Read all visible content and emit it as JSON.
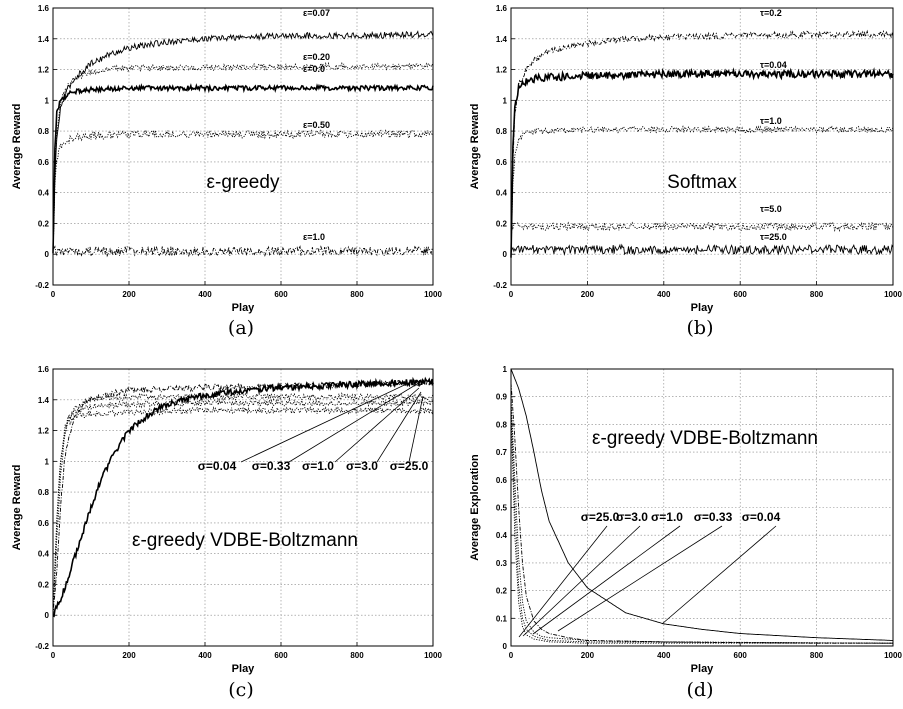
{
  "chart_data": [
    {
      "panel": "a",
      "caption": "(a)",
      "type": "line",
      "title": "",
      "overlay_text": "ε-greedy",
      "xlabel": "Play",
      "ylabel": "Average Reward",
      "xlim": [
        0,
        1000
      ],
      "ylim": [
        -0.2,
        1.6
      ],
      "xticks": [
        "0",
        "200",
        "400",
        "600",
        "800",
        "1000"
      ],
      "yticks": [
        "-0.2",
        "0",
        "0.2",
        "0.4",
        "0.6",
        "0.8",
        "1",
        "1.2",
        "1.4",
        "1.6"
      ],
      "grid": true,
      "series": [
        {
          "name": "ε=0.07",
          "style": "solid-thin",
          "x": [
            0,
            5,
            10,
            20,
            40,
            60,
            100,
            150,
            200,
            300,
            400,
            500,
            600,
            800,
            1000
          ],
          "y": [
            0.0,
            0.5,
            0.75,
            0.95,
            1.08,
            1.15,
            1.24,
            1.3,
            1.34,
            1.38,
            1.4,
            1.41,
            1.42,
            1.42,
            1.43
          ],
          "noise": 0.02
        },
        {
          "name": "ε=0.20",
          "style": "dotted",
          "x": [
            0,
            5,
            10,
            20,
            40,
            60,
            100,
            150,
            200,
            400,
            600,
            800,
            1000
          ],
          "y": [
            0.0,
            0.55,
            0.8,
            1.0,
            1.1,
            1.15,
            1.18,
            1.2,
            1.21,
            1.21,
            1.22,
            1.22,
            1.22
          ],
          "noise": 0.02
        },
        {
          "name": "ε=0.0",
          "style": "solid-thick",
          "x": [
            0,
            5,
            10,
            20,
            40,
            60,
            100,
            200,
            400,
            600,
            800,
            1000
          ],
          "y": [
            0.0,
            0.7,
            0.92,
            1.0,
            1.04,
            1.06,
            1.07,
            1.08,
            1.08,
            1.08,
            1.08,
            1.08
          ],
          "noise": 0.015
        },
        {
          "name": "ε=0.50",
          "style": "dotted",
          "x": [
            0,
            5,
            10,
            20,
            40,
            60,
            100,
            200,
            400,
            600,
            800,
            1000
          ],
          "y": [
            0.0,
            0.45,
            0.62,
            0.7,
            0.74,
            0.76,
            0.77,
            0.78,
            0.78,
            0.78,
            0.78,
            0.78
          ],
          "noise": 0.025
        },
        {
          "name": "ε=1.0",
          "style": "dash-dot",
          "x": [
            0,
            1000
          ],
          "y": [
            0.02,
            0.02
          ],
          "noise": 0.03
        }
      ]
    },
    {
      "panel": "b",
      "caption": "(b)",
      "type": "line",
      "title": "",
      "overlay_text": "Softmax",
      "xlabel": "Play",
      "ylabel": "Average Reward",
      "xlim": [
        0,
        1000
      ],
      "ylim": [
        -0.2,
        1.6
      ],
      "xticks": [
        "0",
        "200",
        "400",
        "600",
        "800",
        "1000"
      ],
      "yticks": [
        "-0.2",
        "0",
        "0.2",
        "0.4",
        "0.6",
        "0.8",
        "1",
        "1.2",
        "1.4",
        "1.6"
      ],
      "grid": true,
      "series": [
        {
          "name": "τ=0.2",
          "style": "dash-dot",
          "x": [
            0,
            5,
            10,
            20,
            40,
            60,
            100,
            150,
            200,
            300,
            400,
            600,
            800,
            1000
          ],
          "y": [
            0.0,
            0.6,
            0.9,
            1.1,
            1.2,
            1.26,
            1.32,
            1.35,
            1.37,
            1.4,
            1.41,
            1.42,
            1.43,
            1.43
          ],
          "noise": 0.02
        },
        {
          "name": "τ=0.04",
          "style": "solid-thick",
          "x": [
            0,
            5,
            10,
            20,
            40,
            60,
            100,
            200,
            400,
            600,
            800,
            1000
          ],
          "y": [
            0.0,
            0.7,
            0.95,
            1.08,
            1.12,
            1.14,
            1.15,
            1.16,
            1.17,
            1.17,
            1.17,
            1.17
          ],
          "noise": 0.025
        },
        {
          "name": "τ=1.0",
          "style": "dotted",
          "x": [
            0,
            5,
            10,
            20,
            40,
            60,
            100,
            200,
            400,
            600,
            800,
            1000
          ],
          "y": [
            0.0,
            0.45,
            0.65,
            0.76,
            0.79,
            0.8,
            0.8,
            0.81,
            0.81,
            0.81,
            0.81,
            0.81
          ],
          "noise": 0.02
        },
        {
          "name": "τ=5.0",
          "style": "dotted",
          "x": [
            0,
            1000
          ],
          "y": [
            0.18,
            0.18
          ],
          "noise": 0.025
        },
        {
          "name": "τ=25.0",
          "style": "solid-thin",
          "x": [
            0,
            1000
          ],
          "y": [
            0.03,
            0.03
          ],
          "noise": 0.03
        }
      ]
    },
    {
      "panel": "c",
      "caption": "(c)",
      "type": "line",
      "title": "",
      "overlay_text": "ε-greedy VDBE-Boltzmann",
      "xlabel": "Play",
      "ylabel": "Average Reward",
      "xlim": [
        0,
        1000
      ],
      "ylim": [
        -0.2,
        1.6
      ],
      "xticks": [
        "0",
        "200",
        "400",
        "600",
        "800",
        "1000"
      ],
      "yticks": [
        "-0.2",
        "0",
        "0.2",
        "0.4",
        "0.6",
        "0.8",
        "1",
        "1.2",
        "1.4",
        "1.6"
      ],
      "grid": true,
      "series": [
        {
          "name": "σ=0.04",
          "style": "solid-thick",
          "x": [
            0,
            20,
            40,
            60,
            80,
            100,
            130,
            160,
            200,
            250,
            300,
            400,
            500,
            600,
            800,
            1000
          ],
          "y": [
            0.0,
            0.1,
            0.25,
            0.4,
            0.55,
            0.7,
            0.9,
            1.05,
            1.2,
            1.3,
            1.37,
            1.43,
            1.46,
            1.48,
            1.5,
            1.52
          ],
          "noise": 0.02
        },
        {
          "name": "σ=0.33",
          "style": "dash-dot",
          "x": [
            0,
            10,
            20,
            30,
            40,
            60,
            80,
            100,
            150,
            200,
            400,
            600,
            800,
            1000
          ],
          "y": [
            0.0,
            0.3,
            0.7,
            1.0,
            1.15,
            1.3,
            1.37,
            1.4,
            1.44,
            1.46,
            1.48,
            1.49,
            1.5,
            1.51
          ],
          "noise": 0.02
        },
        {
          "name": "σ=1.0",
          "style": "dotted",
          "x": [
            0,
            10,
            20,
            30,
            40,
            60,
            100,
            200,
            400,
            600,
            800,
            1000
          ],
          "y": [
            0.0,
            0.5,
            0.9,
            1.15,
            1.27,
            1.35,
            1.4,
            1.42,
            1.42,
            1.42,
            1.42,
            1.42
          ],
          "noise": 0.02
        },
        {
          "name": "σ=3.0",
          "style": "dotted",
          "x": [
            0,
            10,
            20,
            30,
            40,
            60,
            100,
            200,
            400,
            600,
            800,
            1000
          ],
          "y": [
            0.0,
            0.6,
            1.0,
            1.2,
            1.28,
            1.33,
            1.36,
            1.37,
            1.38,
            1.38,
            1.38,
            1.38
          ],
          "noise": 0.02
        },
        {
          "name": "σ=25.0",
          "style": "dotted",
          "x": [
            0,
            10,
            20,
            30,
            40,
            60,
            100,
            200,
            400,
            600,
            800,
            1000
          ],
          "y": [
            0.0,
            0.65,
            1.0,
            1.18,
            1.25,
            1.29,
            1.31,
            1.32,
            1.33,
            1.33,
            1.33,
            1.33
          ],
          "noise": 0.02
        }
      ]
    },
    {
      "panel": "d",
      "caption": "(d)",
      "type": "line",
      "title": "",
      "overlay_text": "ε-greedy VDBE-Boltzmann",
      "xlabel": "Play",
      "ylabel": "Average Exploration",
      "xlim": [
        0,
        1000
      ],
      "ylim": [
        0,
        1
      ],
      "xticks": [
        "0",
        "200",
        "400",
        "600",
        "800",
        "1000"
      ],
      "yticks": [
        "0",
        "0.1",
        "0.2",
        "0.3",
        "0.4",
        "0.5",
        "0.6",
        "0.7",
        "0.8",
        "0.9",
        "1"
      ],
      "grid": true,
      "series": [
        {
          "name": "σ=0.04",
          "style": "solid-thin",
          "x": [
            0,
            20,
            40,
            60,
            80,
            100,
            150,
            200,
            300,
            400,
            500,
            600,
            800,
            1000
          ],
          "y": [
            1.0,
            0.93,
            0.83,
            0.7,
            0.56,
            0.45,
            0.3,
            0.21,
            0.12,
            0.08,
            0.06,
            0.045,
            0.03,
            0.02
          ],
          "noise": 0
        },
        {
          "name": "σ=0.33",
          "style": "dash-dot",
          "x": [
            0,
            10,
            20,
            30,
            40,
            60,
            80,
            100,
            150,
            200,
            400,
            600,
            800,
            1000
          ],
          "y": [
            0.95,
            0.75,
            0.5,
            0.3,
            0.18,
            0.09,
            0.06,
            0.045,
            0.03,
            0.02,
            0.015,
            0.012,
            0.01,
            0.01
          ],
          "noise": 0
        },
        {
          "name": "σ=1.0",
          "style": "dotted",
          "x": [
            0,
            10,
            20,
            30,
            40,
            60,
            80,
            100,
            200,
            400,
            1000
          ],
          "y": [
            0.9,
            0.6,
            0.32,
            0.16,
            0.09,
            0.05,
            0.035,
            0.03,
            0.02,
            0.015,
            0.01
          ],
          "noise": 0
        },
        {
          "name": "σ=3.0",
          "style": "dotted",
          "x": [
            0,
            10,
            20,
            30,
            40,
            60,
            100,
            200,
            1000
          ],
          "y": [
            0.88,
            0.5,
            0.22,
            0.1,
            0.06,
            0.035,
            0.02,
            0.015,
            0.01
          ],
          "noise": 0
        },
        {
          "name": "σ=25.0",
          "style": "dotted",
          "x": [
            0,
            10,
            20,
            30,
            40,
            60,
            100,
            200,
            1000
          ],
          "y": [
            0.85,
            0.4,
            0.16,
            0.07,
            0.04,
            0.025,
            0.015,
            0.01,
            0.01
          ],
          "noise": 0
        }
      ]
    }
  ]
}
